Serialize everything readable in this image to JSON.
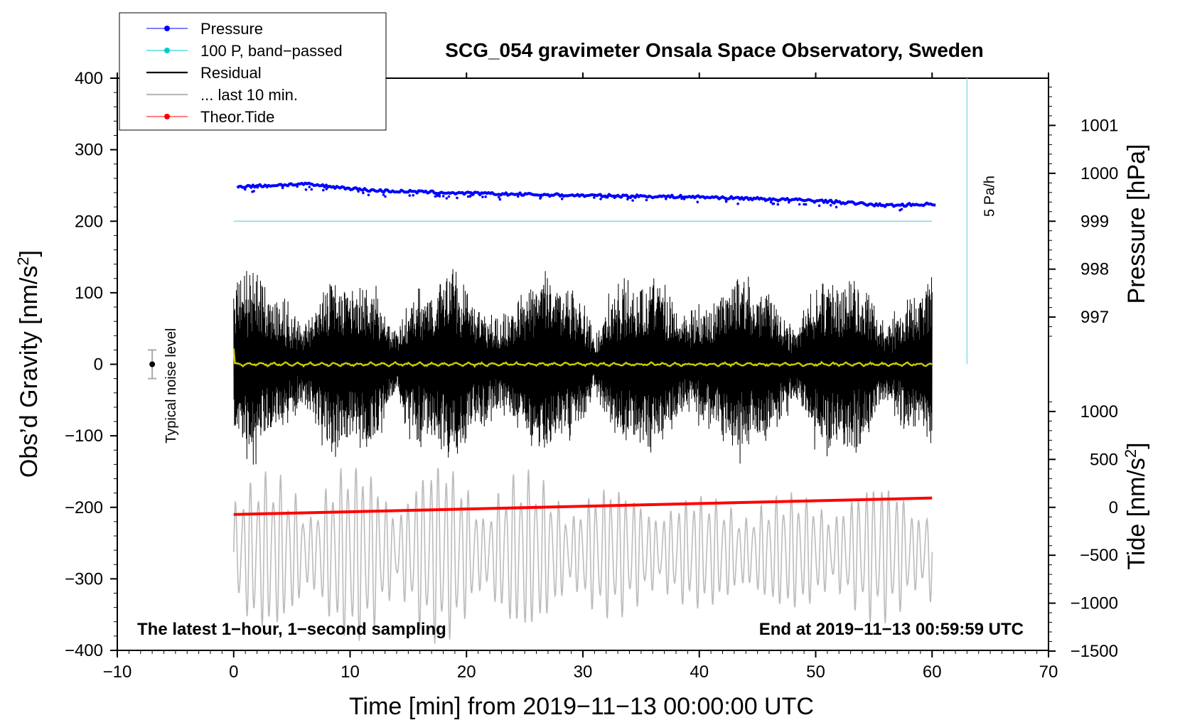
{
  "chart_data": {
    "type": "line",
    "title": "SCG_054 gravimeter Onsala Space Observatory, Sweden",
    "xlabel": "Time [min] from 2019−11−13 00:00:00 UTC",
    "ylabel_main": "Obs’d Gravity [nm/s",
    "ylabel_main_sup": "2",
    "ylabel_main_end": "]",
    "ylabel_pressure": "Pressure [hPa]",
    "ylabel_tide": "Tide [nm/s",
    "ylabel_tide_sup": "2",
    "ylabel_tide_end": "]",
    "xlim": [
      -10,
      70
    ],
    "ylim": [
      -400,
      400
    ],
    "x_ticks": [
      -10,
      0,
      10,
      20,
      30,
      40,
      50,
      60,
      70
    ],
    "x_tick_labels": [
      "−10",
      "0",
      "10",
      "20",
      "30",
      "40",
      "50",
      "60",
      "70"
    ],
    "y_ticks": [
      400,
      300,
      200,
      100,
      0,
      -100,
      -200,
      -300,
      -400
    ],
    "y_tick_labels": [
      "400",
      "300",
      "200",
      "100",
      "0",
      "−100",
      "−200",
      "−300",
      "−400"
    ],
    "pressure_axis": {
      "ticks": [
        1001,
        1000,
        999,
        998,
        997
      ],
      "tick_labels": [
        "1001",
        "1000",
        "999",
        "998",
        "997"
      ],
      "gravity_equiv_at_999": 200,
      "gravity_per_hpa": 67
    },
    "tide_axis": {
      "ticks": [
        1000,
        500,
        0,
        -500,
        -1000,
        -1500
      ],
      "tick_labels": [
        "1000",
        "500",
        "0",
        "−500",
        "−1000",
        "−1500"
      ],
      "gravity_equiv_at_0": -200,
      "gravity_per_500": 67
    },
    "legend": [
      {
        "label": "Pressure",
        "color": "#0000ff",
        "marker": true
      },
      {
        "label": "100 P, band−passed",
        "color": "#00cccc",
        "marker": true
      },
      {
        "label": "Residual",
        "color": "#000000",
        "marker": false
      },
      {
        "label": "... last 10 min.",
        "color": "#bbbbbb",
        "marker": false
      },
      {
        "label": "Theor.Tide",
        "color": "#ff0000",
        "marker": true
      }
    ],
    "series": [
      {
        "name": "Pressure",
        "color": "#0000ff",
        "x": [
          0,
          6,
          12,
          20,
          30,
          40,
          50,
          56,
          60
        ],
        "values": [
          248,
          252,
          243,
          239,
          236,
          234,
          229,
          222,
          224
        ]
      },
      {
        "name": "100 P, band−passed",
        "color": "#88dddd",
        "x": [
          0,
          60
        ],
        "values": [
          200,
          200
        ]
      },
      {
        "name": "Residual",
        "color": "#000000",
        "amplitude_range": [
          -160,
          175
        ]
      },
      {
        "name": "Residual smoothed",
        "color": "#cccc00",
        "x": [
          0,
          60
        ],
        "values": [
          0,
          0
        ]
      },
      {
        "name": "... last 10 min.",
        "color": "#bbbbbb",
        "amplitude_range": [
          -410,
          -145
        ]
      },
      {
        "name": "Theor.Tide",
        "color": "#ff0000",
        "x": [
          0,
          60
        ],
        "values": [
          -210,
          -187
        ]
      }
    ],
    "scale_bar": {
      "label": "5 Pa/h",
      "x": 63,
      "y_from": 0,
      "y_to": 400,
      "color": "#88dddd"
    },
    "noise_marker": {
      "label": "Typical noise level",
      "x": -7,
      "y": 0,
      "error": 20
    },
    "annotation_left": "The latest 1−hour, 1−second sampling",
    "annotation_right": "End at 2019−11−13 00:59:59 UTC"
  }
}
